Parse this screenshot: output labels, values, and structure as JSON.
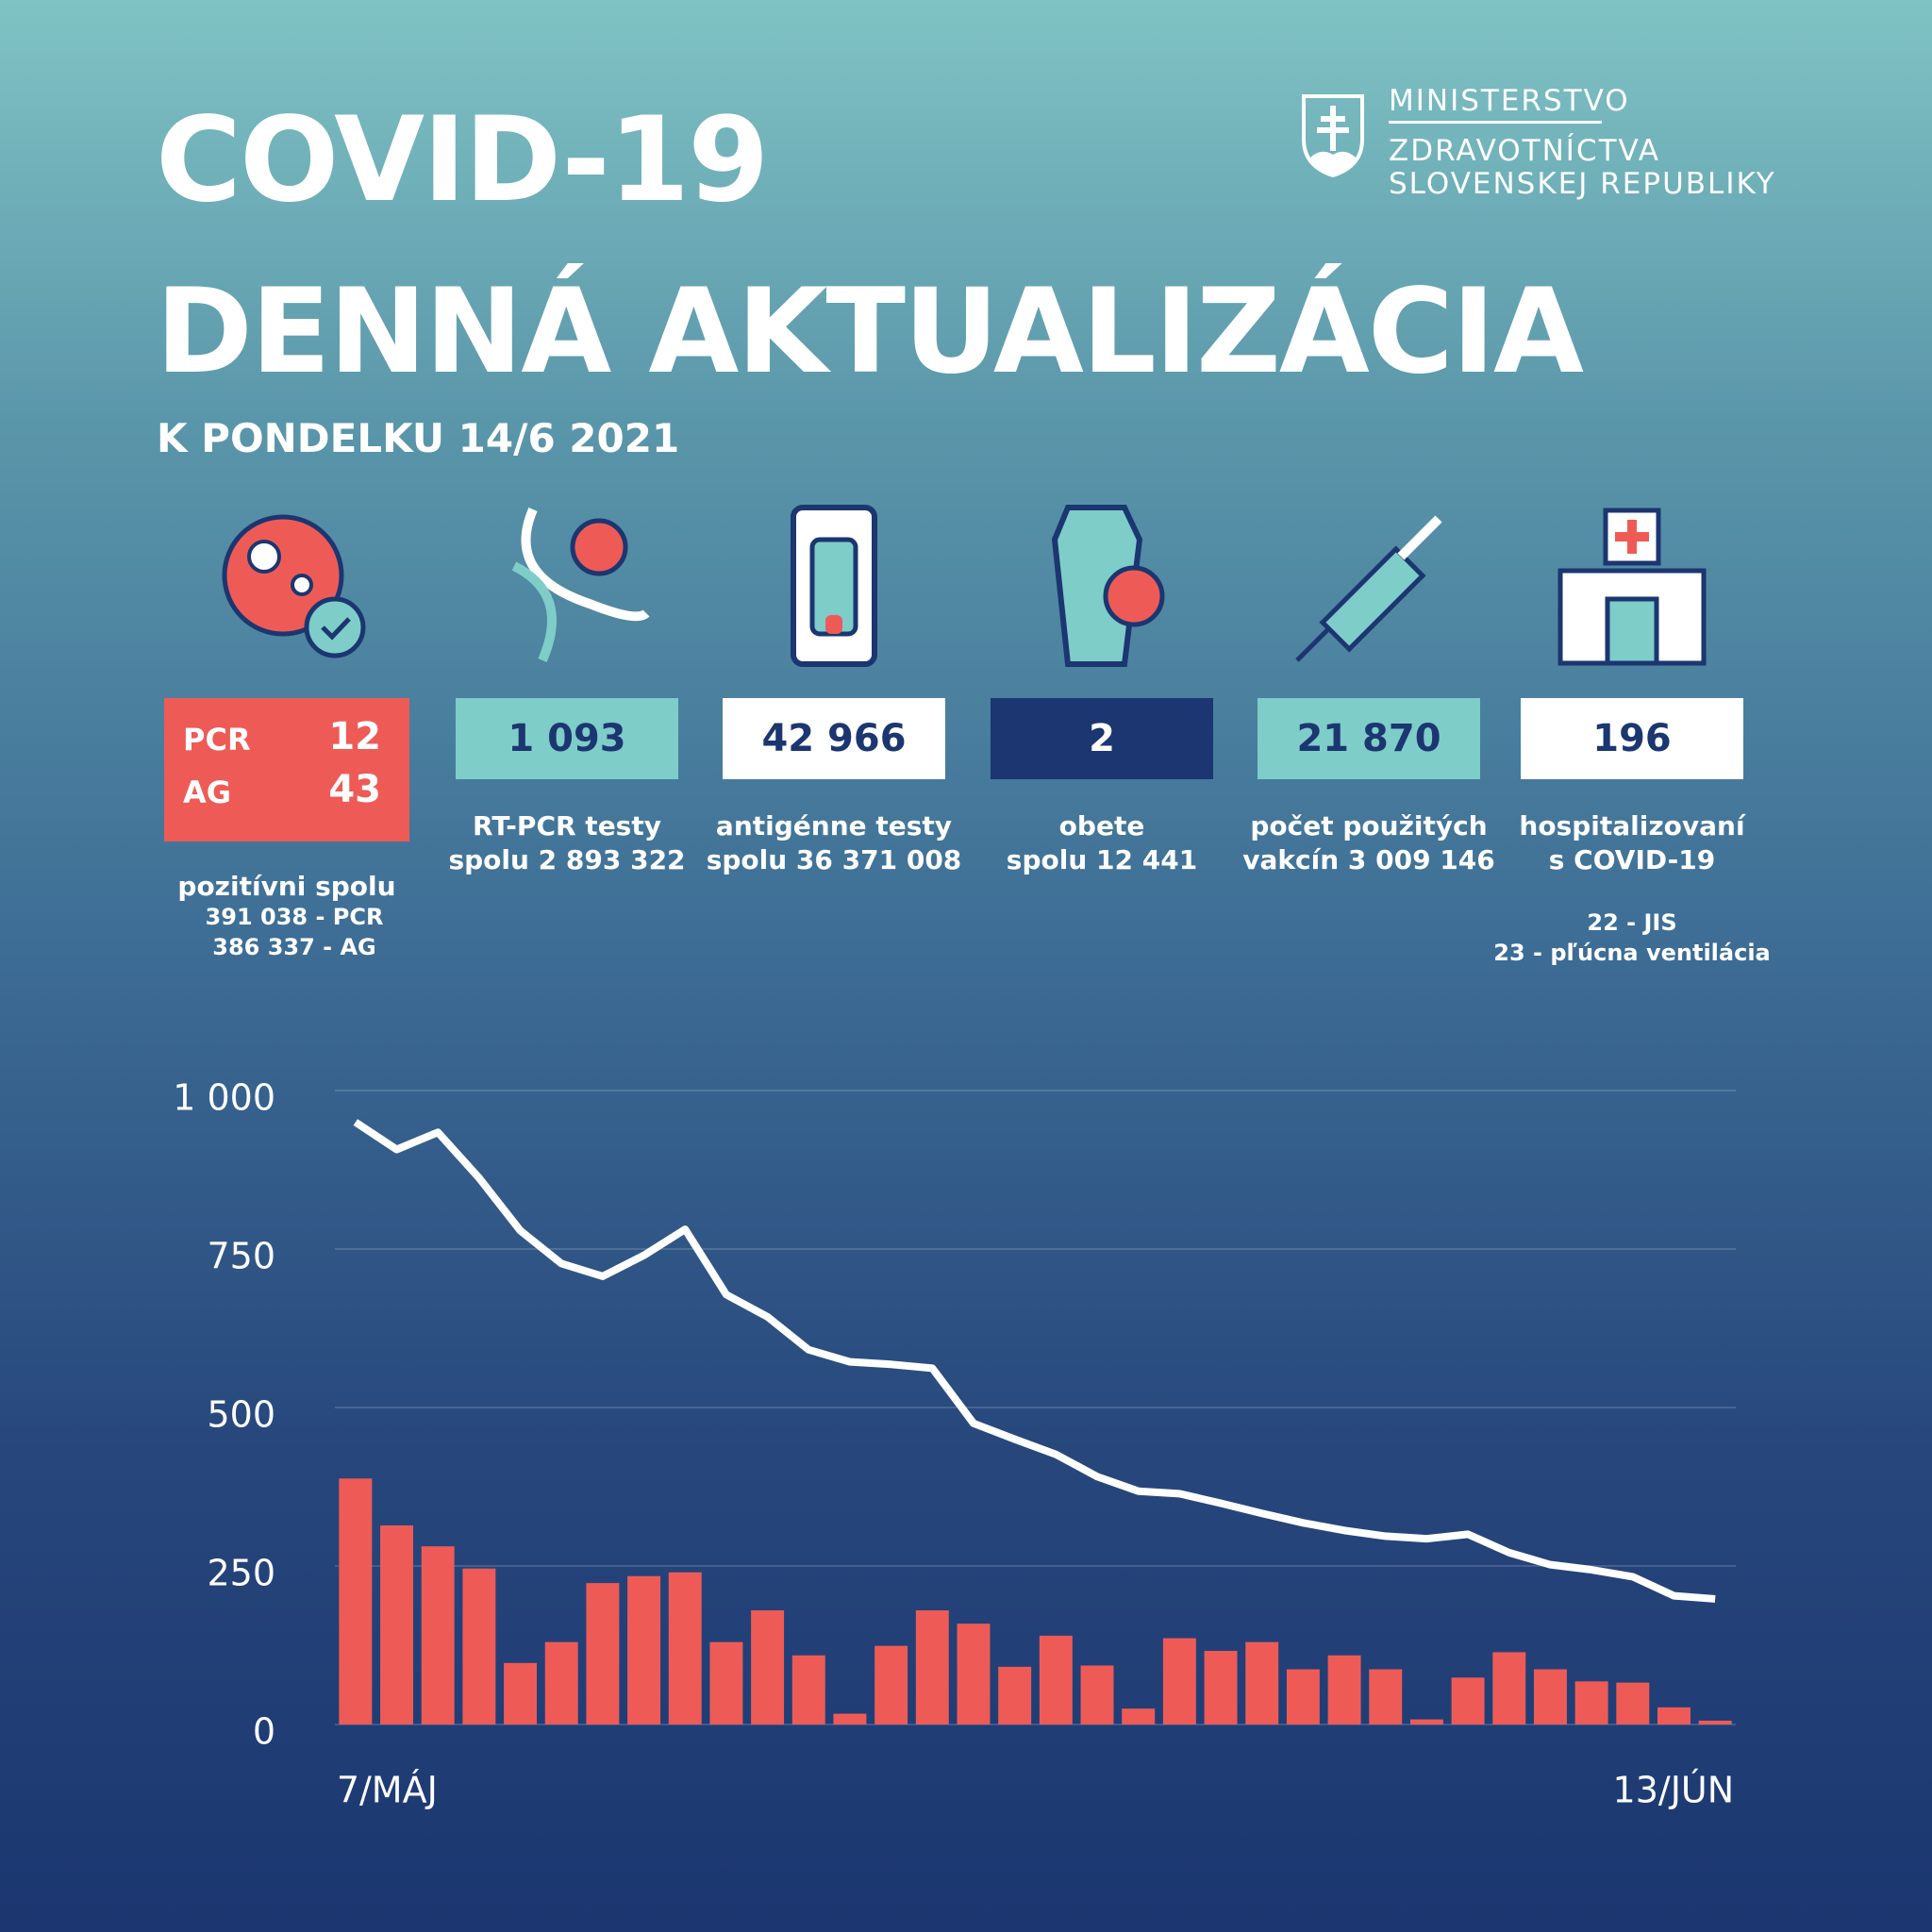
{
  "header": {
    "title_line1": "COVID-19",
    "title_line2": "DENNÁ AKTUALIZÁCIA",
    "subtitle": "K PONDELKU 14/6 2021",
    "ministry": [
      "MINISTERSTVO",
      "ZDRAVOTNÍCTVA",
      "SLOVENSKEJ REPUBLIKY"
    ]
  },
  "stats": [
    {
      "rows": [
        [
          "PCR",
          "12"
        ],
        [
          "AG",
          "43"
        ]
      ],
      "label": [
        "pozitívni spolu"
      ],
      "notes": [
        "391 038 - PCR",
        "386 337 - AG"
      ]
    },
    {
      "value": "1 093",
      "label": [
        "RT-PCR testy",
        "spolu 2 893 322"
      ]
    },
    {
      "value": "42 966",
      "label": [
        "antigénne testy",
        "spolu 36 371 008"
      ]
    },
    {
      "value": "2",
      "label": [
        "obete",
        "spolu 12 441"
      ]
    },
    {
      "value": "21 870",
      "label": [
        "počet použitých",
        "vakcín 3 009 146"
      ]
    },
    {
      "value": "196",
      "label": [
        "hospitalizovaní",
        "s COVID-19"
      ],
      "notes": [
        "22 - JIS",
        "23 - pľúcna ventilácia"
      ]
    }
  ],
  "chart_data": {
    "type": "bar",
    "categories": [
      "7/MÁJ",
      null,
      null,
      null,
      null,
      null,
      null,
      null,
      null,
      null,
      null,
      null,
      null,
      null,
      null,
      null,
      null,
      null,
      null,
      null,
      null,
      null,
      null,
      null,
      null,
      null,
      null,
      null,
      null,
      null,
      null,
      null,
      null,
      "13/JÚN"
    ],
    "series": [
      {
        "type": "bar",
        "color": "#ee5b57",
        "values": [
          388,
          314,
          281,
          246,
          97,
          130,
          223,
          234,
          240,
          130,
          180,
          109,
          17,
          124,
          180,
          159,
          91,
          140,
          93,
          25,
          136,
          116,
          130,
          87,
          109,
          87,
          8,
          74,
          114,
          87,
          68,
          66,
          27,
          6
        ]
      },
      {
        "type": "line",
        "color": "#ffffff",
        "values": [
          950,
          907,
          934,
          862,
          779,
          727,
          707,
          740,
          781,
          678,
          643,
          591,
          572,
          568,
          562,
          475,
          450,
          426,
          391,
          368,
          364,
          349,
          333,
          318,
          306,
          297,
          293,
          300,
          271,
          252,
          244,
          233,
          203,
          198
        ]
      }
    ],
    "ylim": [
      0,
      1000
    ],
    "yticks": [
      0,
      250,
      500,
      750,
      {
        "value": 1000,
        "label": "1 000"
      }
    ],
    "grid": true
  }
}
